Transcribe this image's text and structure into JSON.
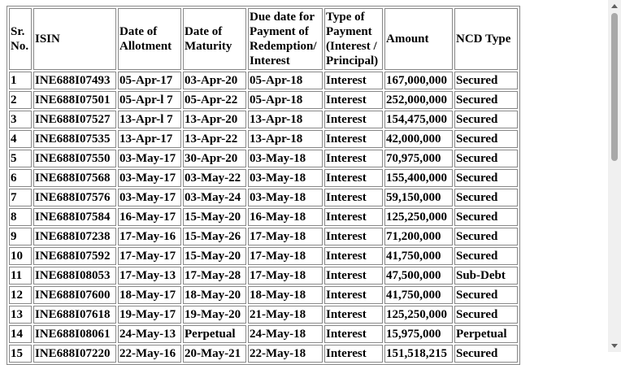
{
  "table": {
    "headers": [
      "Sr. No.",
      "ISIN",
      "Date of Allotment",
      "Date of Maturity",
      "Due date for Payment of Redemption/ Interest",
      "Type of Payment (Interest / Principal)",
      "Amount",
      "NCD Type"
    ],
    "rows": [
      [
        "1",
        "INE688I07493",
        "05-Apr-17",
        "03-Apr-20",
        "05-Apr-18",
        "Interest",
        "167,000,000",
        "Secured"
      ],
      [
        "2",
        "INE688I07501",
        "05-Apr-l 7",
        "05-Apr-22",
        "05-Apr-18",
        "Interest",
        "252,000,000",
        "Secured"
      ],
      [
        "3",
        "INE688I07527",
        "13-Apr-l 7",
        "13-Apr-20",
        "13-Apr-18",
        "Interest",
        "154,475,000",
        "Secured"
      ],
      [
        "4",
        "INE688I07535",
        "13-Apr-17",
        "13-Apr-22",
        "13-Apr-18",
        "Interest",
        "42,000,000",
        "Secured"
      ],
      [
        "5",
        "INE688I07550",
        "03-May-17",
        "30-Apr-20",
        "03-May-18",
        "Interest",
        "70,975,000",
        "Secured"
      ],
      [
        "6",
        "INE688I07568",
        "03-May-17",
        "03-May-22",
        "03-May-18",
        "Interest",
        "155,400,000",
        "Secured"
      ],
      [
        "7",
        "INE688I07576",
        "03-May-17",
        "03-May-24",
        "03-May-18",
        "Interest",
        "59,150,000",
        "Secured"
      ],
      [
        "8",
        "INE688I07584",
        "16-May-17",
        "15-May-20",
        "16-May-18",
        "Interest",
        "125,250,000",
        "Secured"
      ],
      [
        "9",
        "INE688I07238",
        "17-May-16",
        "15-May-26",
        "17-May-18",
        "Interest",
        "71,200,000",
        "Secured"
      ],
      [
        "10",
        "INE688I07592",
        "17-May-17",
        "15-May-20",
        "17-May-18",
        "Interest",
        "41,750,000",
        "Secured"
      ],
      [
        "11",
        "INE688I08053",
        "17-May-13",
        "17-May-28",
        "17-May-18",
        "Interest",
        "47,500,000",
        "Sub-Debt"
      ],
      [
        "12",
        "INE688I07600",
        "18-May-17",
        "18-May-20",
        "18-May-18",
        "Interest",
        "41,750,000",
        "Secured"
      ],
      [
        "13",
        "INE688I07618",
        "19-May-17",
        "19-May-20",
        "21-May-18",
        "Interest",
        "125,250,000",
        "Secured"
      ],
      [
        "14",
        "INE688I08061",
        "24-May-13",
        "Perpetual",
        "24-May-18",
        "Interest",
        "15,975,000",
        "Perpetual"
      ],
      [
        "15",
        "INE688I07220",
        "22-May-16",
        "20-May-21",
        "22-May-18",
        "Interest",
        "151,518,215",
        "Secured"
      ]
    ]
  }
}
